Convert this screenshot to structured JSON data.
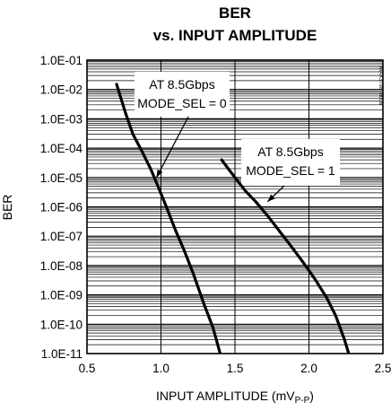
{
  "chart_data": {
    "type": "line",
    "title": "BER",
    "subtitle": "vs. INPUT AMPLITUDE",
    "xlabel_main": "INPUT AMPLITUDE (mV",
    "xlabel_sub": "P-P",
    "xlabel_end": ")",
    "ylabel": "BER",
    "xlim": [
      0.5,
      2.5
    ],
    "ylim_log10": [
      -11,
      -1
    ],
    "y_scale": "log",
    "x_ticks": [
      "0.5",
      "1.0",
      "1.5",
      "2.0",
      "2.5"
    ],
    "y_ticks": [
      "1.0E-01",
      "1.0E-02",
      "1.0E-03",
      "1.0E-04",
      "1.0E-05",
      "1.0E-06",
      "1.0E-07",
      "1.0E-08",
      "1.0E-09",
      "1.0E-10",
      "1.0E-11"
    ],
    "grid": true,
    "watermark": "MAX3798 toc06",
    "series": [
      {
        "x": [
          0.7,
          0.76,
          0.81,
          0.87,
          0.93,
          0.98,
          1.04,
          1.1,
          1.16,
          1.22,
          1.29,
          1.35,
          1.4
        ],
        "y": [
          0.015,
          0.0016,
          0.0003,
          8e-05,
          2e-05,
          5e-06,
          9e-07,
          1.5e-07,
          3e-08,
          5e-09,
          5e-10,
          8e-11,
          1e-11
        ]
      },
      {
        "x": [
          1.41,
          1.5,
          1.57,
          1.64,
          1.72,
          1.8,
          1.88,
          1.96,
          2.04,
          2.12,
          2.18,
          2.24,
          2.3
        ],
        "y": [
          4e-05,
          1e-05,
          3.5e-06,
          1.5e-06,
          5e-07,
          1.5e-07,
          4.5e-08,
          1.3e-08,
          3.5e-09,
          8e-10,
          2e-10,
          3e-11,
          3e-12
        ]
      }
    ],
    "annotations": [
      {
        "lines": [
          "AT 8.5Gbps",
          "MODE_SEL = 0"
        ],
        "arrow_to_x": 0.97,
        "arrow_to_y": 1e-05
      },
      {
        "lines": [
          "AT 8.5Gbps",
          "MODE_SEL = 1"
        ],
        "arrow_to_x": 1.72,
        "arrow_to_y": 1.5e-06
      }
    ]
  }
}
